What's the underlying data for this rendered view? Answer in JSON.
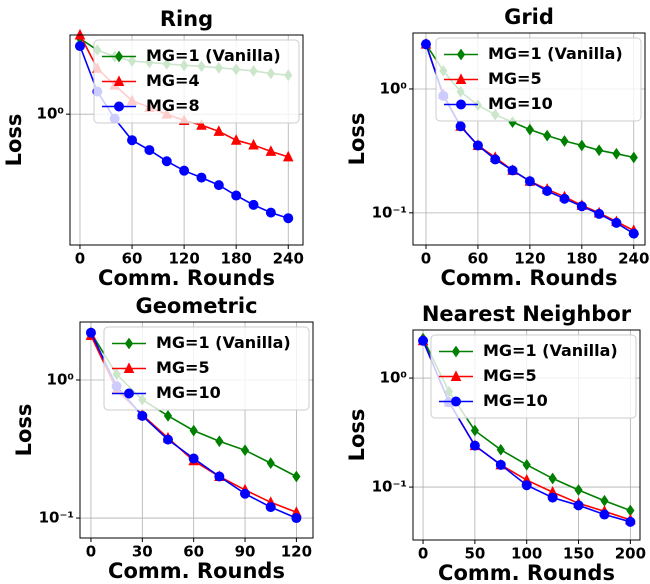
{
  "chart_data": [
    {
      "type": "line",
      "title": "Ring",
      "xlabel": "Comm. Rounds",
      "ylabel": "Loss",
      "log_y": true,
      "grid": true,
      "legend": "upper right",
      "x": [
        0,
        20,
        40,
        60,
        80,
        100,
        120,
        140,
        160,
        180,
        200,
        220,
        240
      ],
      "xlim": [
        -11.5,
        257
      ],
      "xticks": [
        0,
        60,
        120,
        180,
        240
      ],
      "ylim": [
        0.22,
        2.5
      ],
      "yticks": [
        {
          "value": 1,
          "label": "10⁰"
        }
      ],
      "series": [
        {
          "name": "MG=1 (Vanilla)",
          "color": "#008000",
          "values": [
            2.4,
            2.1,
            1.95,
            1.85,
            1.82,
            1.79,
            1.76,
            1.74,
            1.71,
            1.68,
            1.65,
            1.6,
            1.57
          ]
        },
        {
          "name": "MG=4",
          "color": "#ff0000",
          "values": [
            2.5,
            1.7,
            1.4,
            1.17,
            1.08,
            1.0,
            0.93,
            0.88,
            0.82,
            0.74,
            0.7,
            0.65,
            0.61
          ]
        },
        {
          "name": "MG=8",
          "color": "#0000ff",
          "values": [
            2.2,
            1.3,
            0.95,
            0.74,
            0.66,
            0.58,
            0.52,
            0.48,
            0.44,
            0.39,
            0.35,
            0.32,
            0.3
          ]
        }
      ]
    },
    {
      "type": "line",
      "title": "Grid",
      "xlabel": "Comm. Rounds",
      "ylabel": "Loss",
      "log_y": true,
      "grid": true,
      "legend": "upper right",
      "x": [
        0,
        20,
        40,
        60,
        80,
        100,
        120,
        140,
        160,
        180,
        200,
        220,
        240
      ],
      "xlim": [
        -15,
        253
      ],
      "xticks": [
        0,
        60,
        120,
        180,
        240
      ],
      "ylim": [
        0.055,
        2.83
      ],
      "yticks": [
        {
          "value": 0.1,
          "label": "10⁻¹"
        },
        {
          "value": 1,
          "label": "10⁰"
        }
      ],
      "series": [
        {
          "name": "MG=1 (Vanilla)",
          "color": "#008000",
          "values": [
            2.3,
            1.4,
            0.95,
            0.74,
            0.62,
            0.54,
            0.47,
            0.42,
            0.38,
            0.35,
            0.32,
            0.3,
            0.28
          ]
        },
        {
          "name": "MG=5",
          "color": "#ff0000",
          "values": [
            2.3,
            0.9,
            0.5,
            0.35,
            0.28,
            0.22,
            0.18,
            0.155,
            0.135,
            0.115,
            0.1,
            0.085,
            0.072
          ]
        },
        {
          "name": "MG=10",
          "color": "#0000ff",
          "values": [
            2.3,
            0.88,
            0.5,
            0.35,
            0.27,
            0.22,
            0.18,
            0.15,
            0.13,
            0.113,
            0.098,
            0.083,
            0.068
          ]
        }
      ]
    },
    {
      "type": "line",
      "title": "Geometric",
      "xlabel": "Comm. Rounds",
      "ylabel": "Loss",
      "log_y": true,
      "grid": true,
      "legend": "upper right",
      "x": [
        0,
        15,
        30,
        45,
        60,
        75,
        90,
        105,
        120
      ],
      "xlim": [
        -6.4,
        129.7
      ],
      "xticks": [
        0,
        30,
        60,
        90,
        120
      ],
      "ylim": [
        0.0717,
        2.63
      ],
      "yticks": [
        {
          "value": 0.1,
          "label": "10⁻¹"
        },
        {
          "value": 1,
          "label": "10⁰"
        }
      ],
      "series": [
        {
          "name": "MG=1 (Vanilla)",
          "color": "#008000",
          "values": [
            2.2,
            1.1,
            0.72,
            0.55,
            0.43,
            0.36,
            0.31,
            0.25,
            0.2
          ]
        },
        {
          "name": "MG=5",
          "color": "#ff0000",
          "values": [
            2.1,
            0.85,
            0.56,
            0.38,
            0.26,
            0.2,
            0.16,
            0.13,
            0.11
          ]
        },
        {
          "name": "MG=10",
          "color": "#0000ff",
          "values": [
            2.2,
            0.9,
            0.55,
            0.37,
            0.27,
            0.2,
            0.15,
            0.12,
            0.1
          ]
        }
      ]
    },
    {
      "type": "line",
      "title": "Nearest Neighbor",
      "xlabel": "Comm. Rounds",
      "ylabel": "Loss",
      "log_y": true,
      "grid": true,
      "legend": "upper right",
      "x": [
        0,
        25,
        50,
        75,
        100,
        125,
        150,
        175,
        200
      ],
      "xlim": [
        -9.7,
        209.3
      ],
      "xticks": [
        0,
        50,
        100,
        150,
        200
      ],
      "ylim": [
        0.0327,
        2.76
      ],
      "yticks": [
        {
          "value": 0.1,
          "label": "10⁻¹"
        },
        {
          "value": 1,
          "label": "10⁰"
        }
      ],
      "series": [
        {
          "name": "MG=1 (Vanilla)",
          "color": "#008000",
          "values": [
            2.3,
            0.75,
            0.33,
            0.22,
            0.16,
            0.12,
            0.094,
            0.075,
            0.061
          ]
        },
        {
          "name": "MG=5",
          "color": "#ff0000",
          "values": [
            2.2,
            0.6,
            0.24,
            0.16,
            0.116,
            0.09,
            0.071,
            0.06,
            0.05
          ]
        },
        {
          "name": "MG=10",
          "color": "#0000ff",
          "values": [
            2.2,
            0.6,
            0.24,
            0.16,
            0.104,
            0.08,
            0.068,
            0.056,
            0.048
          ]
        }
      ]
    }
  ]
}
